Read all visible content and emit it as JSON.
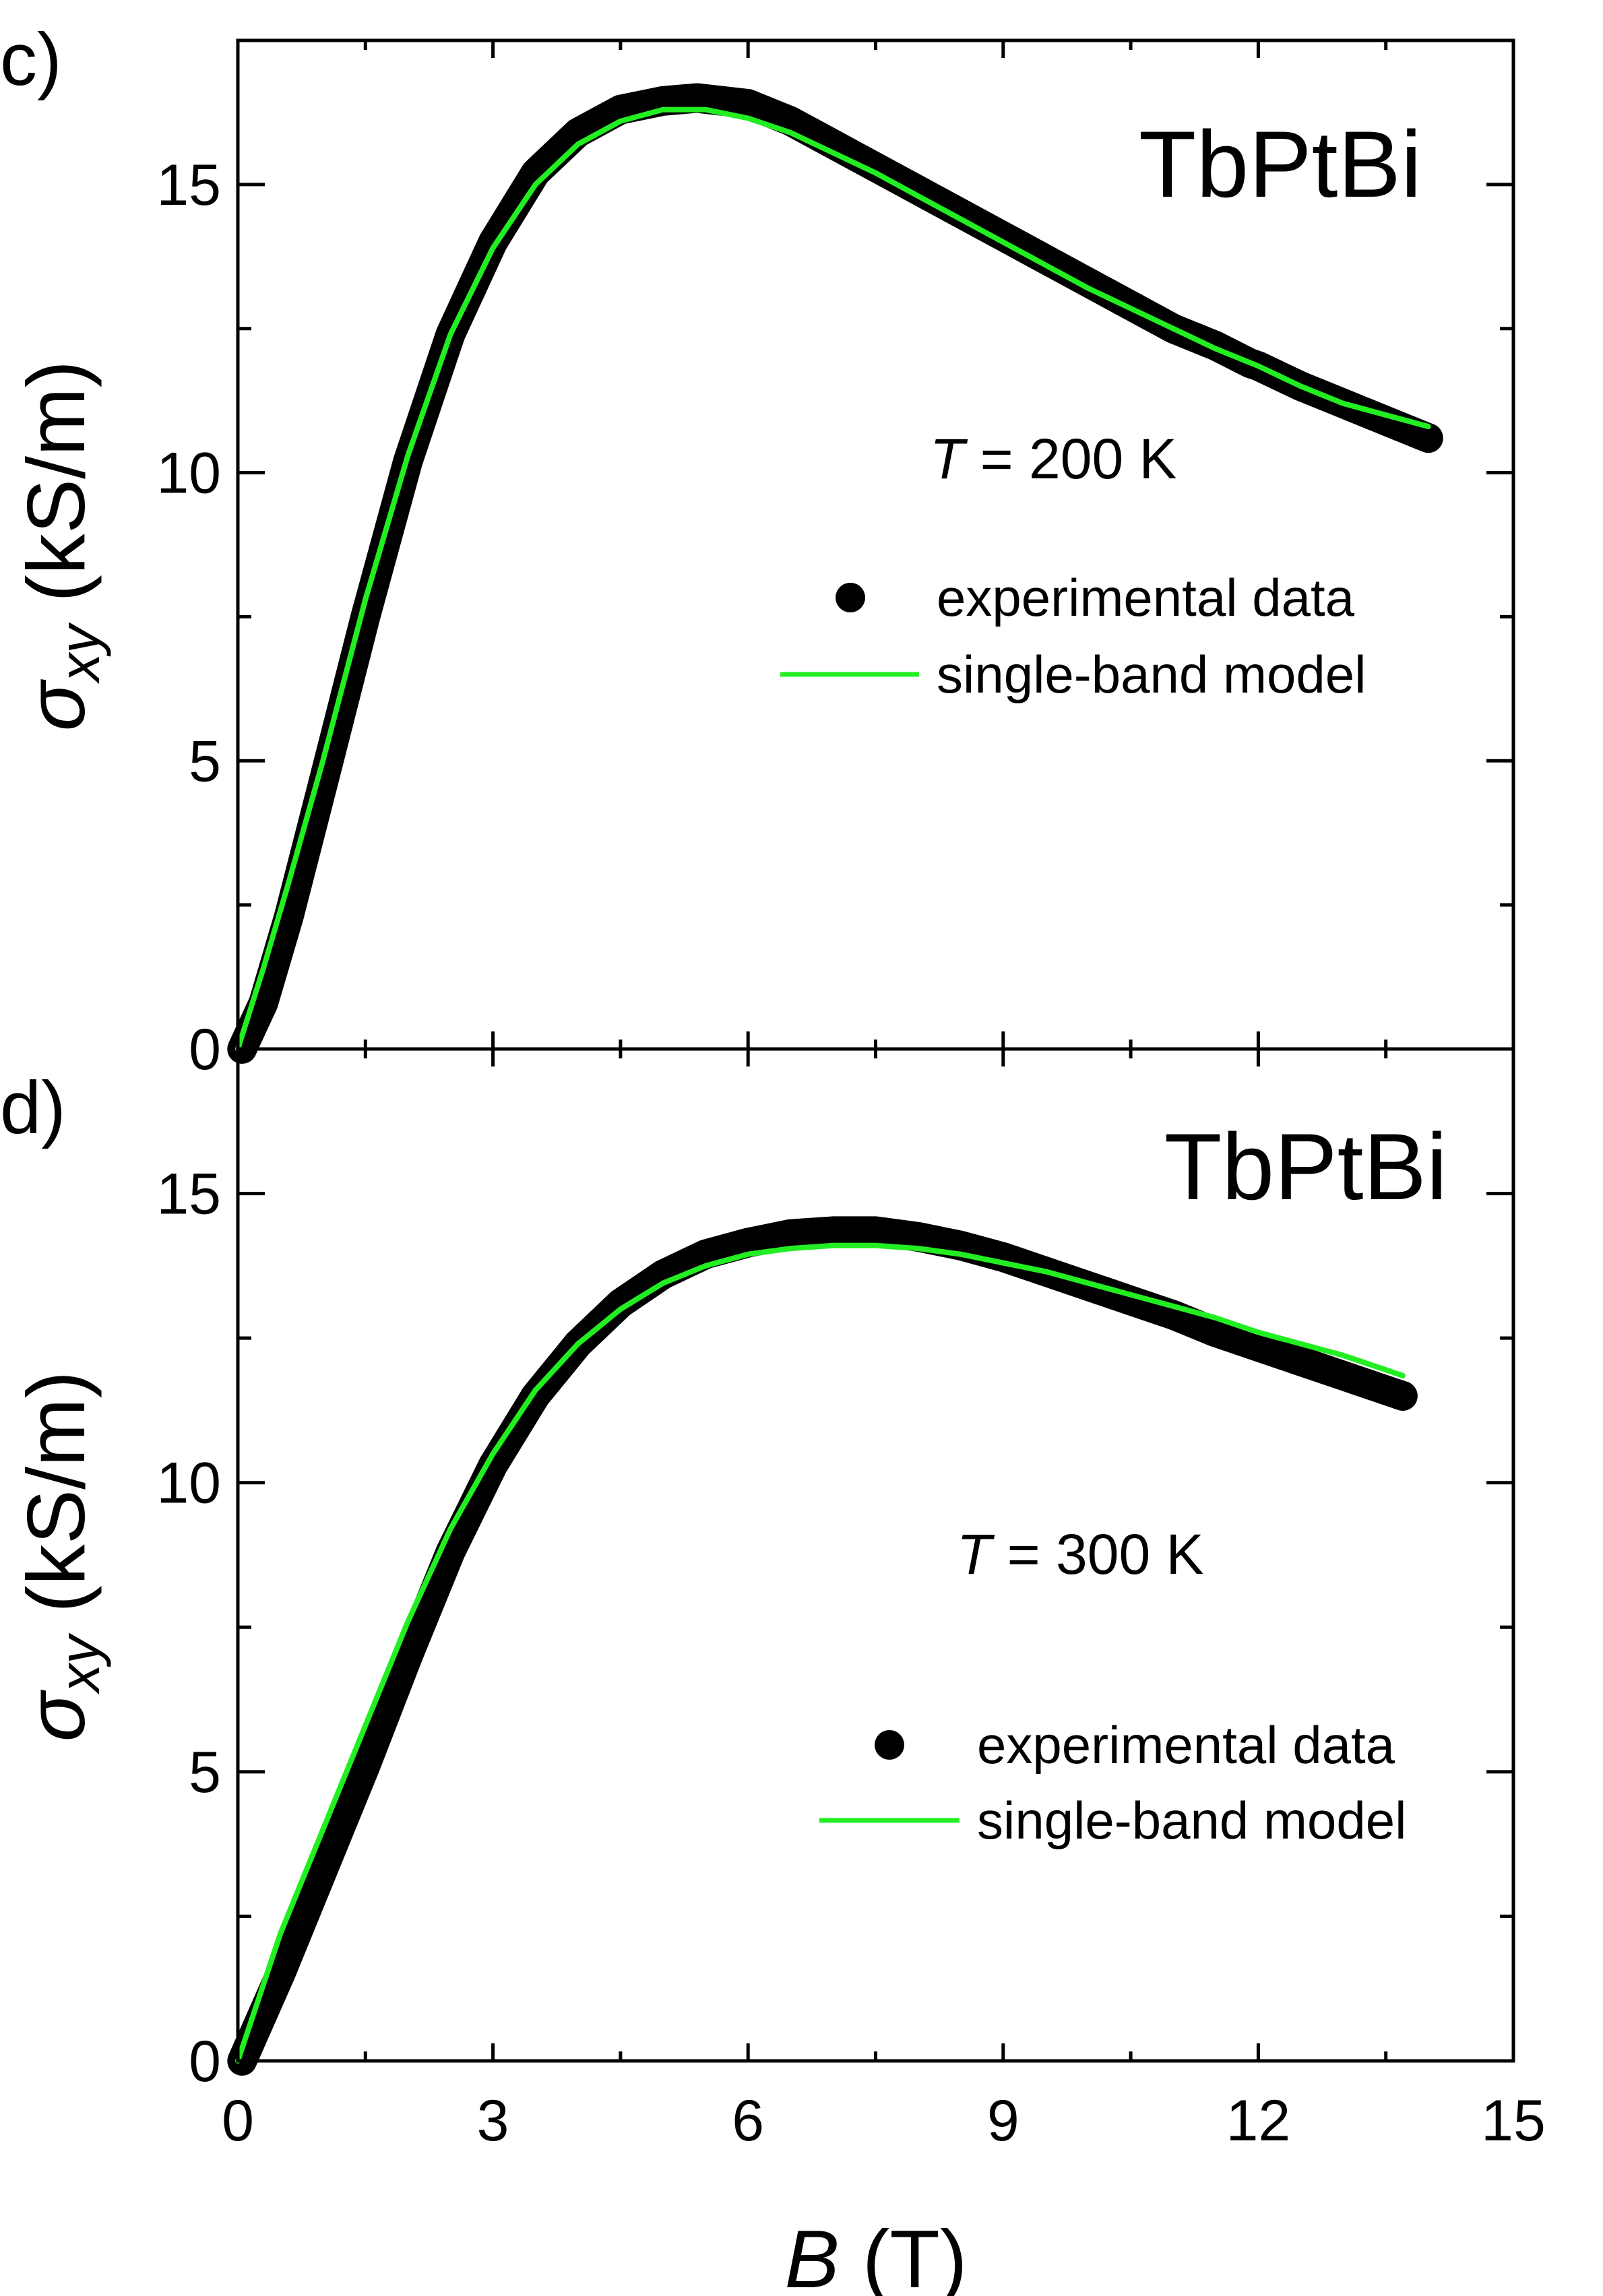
{
  "chart_data": [
    {
      "type": "line",
      "panel_label": "c)",
      "title": "TbPtBi",
      "annotation": {
        "prefix": "T",
        "text": " = 200 K"
      },
      "xlabel": {
        "var": "B",
        "unit": " (T)"
      },
      "ylabel": {
        "sym": "σ",
        "sub": "xy",
        "unit": " (kS/m)"
      },
      "xlim": [
        0,
        15
      ],
      "ylim": [
        0,
        17.5
      ],
      "xticks": [
        0,
        3,
        6,
        9,
        12,
        15
      ],
      "yticks": [
        0,
        5,
        10,
        15
      ],
      "legend_position": "right",
      "legend": [
        {
          "label": "experimental data",
          "marker": "circle",
          "color": "#000000"
        },
        {
          "label": "single-band model",
          "marker": "line",
          "color": "#22ee22"
        }
      ],
      "series": [
        {
          "name": "experimental data",
          "color": "#000000",
          "x": [
            0.05,
            0.3,
            0.6,
            1.0,
            1.5,
            2.0,
            2.5,
            3.0,
            3.5,
            4.0,
            4.5,
            5.0,
            5.4,
            6.0,
            6.5,
            7.0,
            7.5,
            8.0,
            8.5,
            9.0,
            9.5,
            10.0,
            10.5,
            11.0,
            11.5,
            11.9,
            12.0,
            12.5,
            13.0,
            13.5,
            14.0
          ],
          "y": [
            0.0,
            0.8,
            2.3,
            4.6,
            7.5,
            10.2,
            12.4,
            14.0,
            15.2,
            15.9,
            16.3,
            16.45,
            16.5,
            16.4,
            16.1,
            15.7,
            15.3,
            14.9,
            14.5,
            14.1,
            13.7,
            13.3,
            12.9,
            12.5,
            12.2,
            11.9,
            11.85,
            11.5,
            11.2,
            10.9,
            10.6
          ]
        },
        {
          "name": "single-band model",
          "color": "#22ee22",
          "x": [
            0.0,
            0.3,
            0.6,
            1.0,
            1.5,
            2.0,
            2.5,
            3.0,
            3.5,
            4.0,
            4.5,
            5.0,
            5.5,
            6.0,
            6.5,
            7.0,
            7.5,
            8.0,
            8.5,
            9.0,
            9.5,
            10.0,
            10.5,
            11.0,
            11.5,
            12.0,
            12.5,
            13.0,
            13.5,
            14.0
          ],
          "y": [
            0.0,
            1.4,
            2.9,
            5.0,
            7.8,
            10.3,
            12.4,
            13.9,
            15.0,
            15.7,
            16.1,
            16.3,
            16.3,
            16.15,
            15.9,
            15.55,
            15.2,
            14.8,
            14.4,
            14.0,
            13.6,
            13.2,
            12.85,
            12.5,
            12.15,
            11.85,
            11.5,
            11.2,
            11.0,
            10.8
          ]
        }
      ]
    },
    {
      "type": "line",
      "panel_label": "d)",
      "title": "TbPtBi",
      "annotation": {
        "prefix": "T",
        "text": " = 300 K"
      },
      "xlabel": {
        "var": "B",
        "unit": " (T)"
      },
      "ylabel": {
        "sym": "σ",
        "sub": "xy",
        "unit": " (kS/m)"
      },
      "xlim": [
        0,
        15
      ],
      "ylim": [
        0,
        17.5
      ],
      "xticks": [
        0,
        3,
        6,
        9,
        12,
        15
      ],
      "yticks": [
        0,
        5,
        10,
        15
      ],
      "legend_position": "right",
      "legend": [
        {
          "label": "experimental data",
          "marker": "circle",
          "color": "#000000"
        },
        {
          "label": "single-band model",
          "marker": "line",
          "color": "#22ee22"
        }
      ],
      "series": [
        {
          "name": "experimental data",
          "color": "#000000",
          "x": [
            0.05,
            0.5,
            1.0,
            1.5,
            2.0,
            2.5,
            3.0,
            3.5,
            4.0,
            4.5,
            5.0,
            5.5,
            6.0,
            6.5,
            7.0,
            7.5,
            8.0,
            8.5,
            9.0,
            9.5,
            10.0,
            10.5,
            11.0,
            11.5,
            12.0,
            12.5,
            13.0,
            13.5,
            13.7
          ],
          "y": [
            0.0,
            1.5,
            3.3,
            5.1,
            7.0,
            8.8,
            10.3,
            11.5,
            12.4,
            13.1,
            13.6,
            13.95,
            14.15,
            14.3,
            14.35,
            14.35,
            14.25,
            14.1,
            13.9,
            13.65,
            13.4,
            13.15,
            12.9,
            12.6,
            12.35,
            12.1,
            11.85,
            11.6,
            11.5
          ]
        },
        {
          "name": "single-band model",
          "color": "#22ee22",
          "x": [
            0.0,
            0.5,
            1.0,
            1.5,
            2.0,
            2.5,
            3.0,
            3.5,
            4.0,
            4.5,
            5.0,
            5.5,
            6.0,
            6.5,
            7.0,
            7.5,
            8.0,
            8.5,
            9.0,
            9.5,
            10.0,
            10.5,
            11.0,
            11.5,
            12.0,
            12.5,
            13.0,
            13.5,
            13.7
          ],
          "y": [
            0.0,
            2.2,
            4.0,
            5.8,
            7.6,
            9.2,
            10.5,
            11.6,
            12.4,
            13.0,
            13.45,
            13.75,
            13.95,
            14.05,
            14.1,
            14.1,
            14.05,
            13.95,
            13.8,
            13.65,
            13.45,
            13.25,
            13.05,
            12.85,
            12.6,
            12.4,
            12.2,
            11.95,
            11.85
          ]
        }
      ]
    }
  ]
}
